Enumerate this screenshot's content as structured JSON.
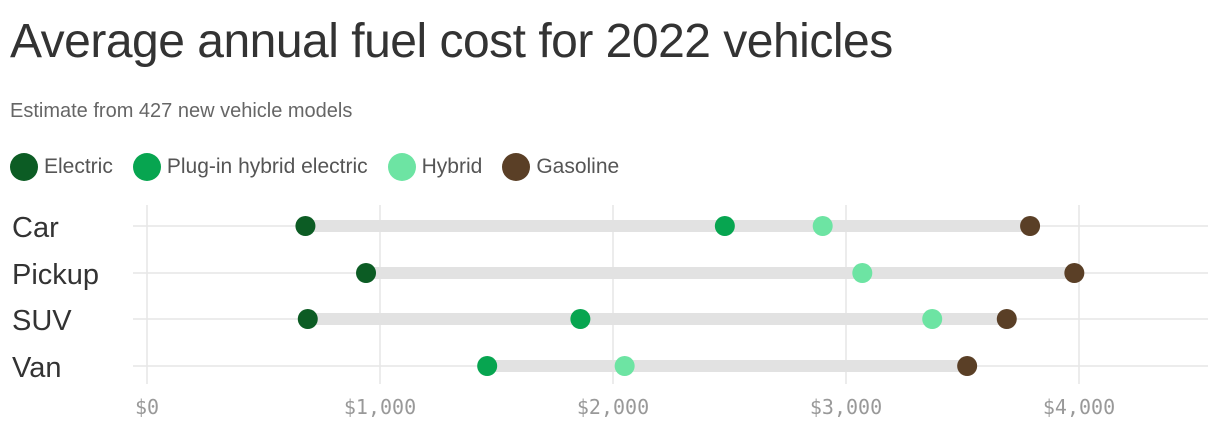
{
  "title": "Average annual fuel cost for 2022 vehicles",
  "subtitle": "Estimate from 427 new vehicle models",
  "colors": {
    "electric": "#0c5c24",
    "phev": "#07a550",
    "hybrid": "#6de4a3",
    "gasoline": "#5a3f26",
    "connector": "#e2e2e2",
    "grid": "#e6e6e6"
  },
  "chart_data": {
    "type": "dot-range",
    "title": "Average annual fuel cost for 2022 vehicles",
    "subtitle": "Estimate from 427 new vehicle models",
    "categories": [
      "Car",
      "Pickup",
      "SUV",
      "Van"
    ],
    "series": [
      {
        "name": "Electric",
        "color": "#0c5c24",
        "values": [
          680,
          940,
          690,
          null
        ]
      },
      {
        "name": "Plug-in hybrid electric",
        "color": "#07a550",
        "values": [
          2480,
          null,
          1860,
          1460
        ]
      },
      {
        "name": "Hybrid",
        "color": "#6de4a3",
        "values": [
          2900,
          3070,
          3370,
          2050
        ]
      },
      {
        "name": "Gasoline",
        "color": "#5a3f26",
        "values": [
          3790,
          3980,
          3690,
          3520
        ]
      }
    ],
    "xlim": [
      0,
      4550
    ],
    "xticks": [
      0,
      1000,
      2000,
      3000,
      4000
    ],
    "xtick_labels": [
      "$0",
      "$1,000",
      "$2,000",
      "$3,000",
      "$4,000"
    ],
    "grid": true,
    "legend": "top-left"
  }
}
